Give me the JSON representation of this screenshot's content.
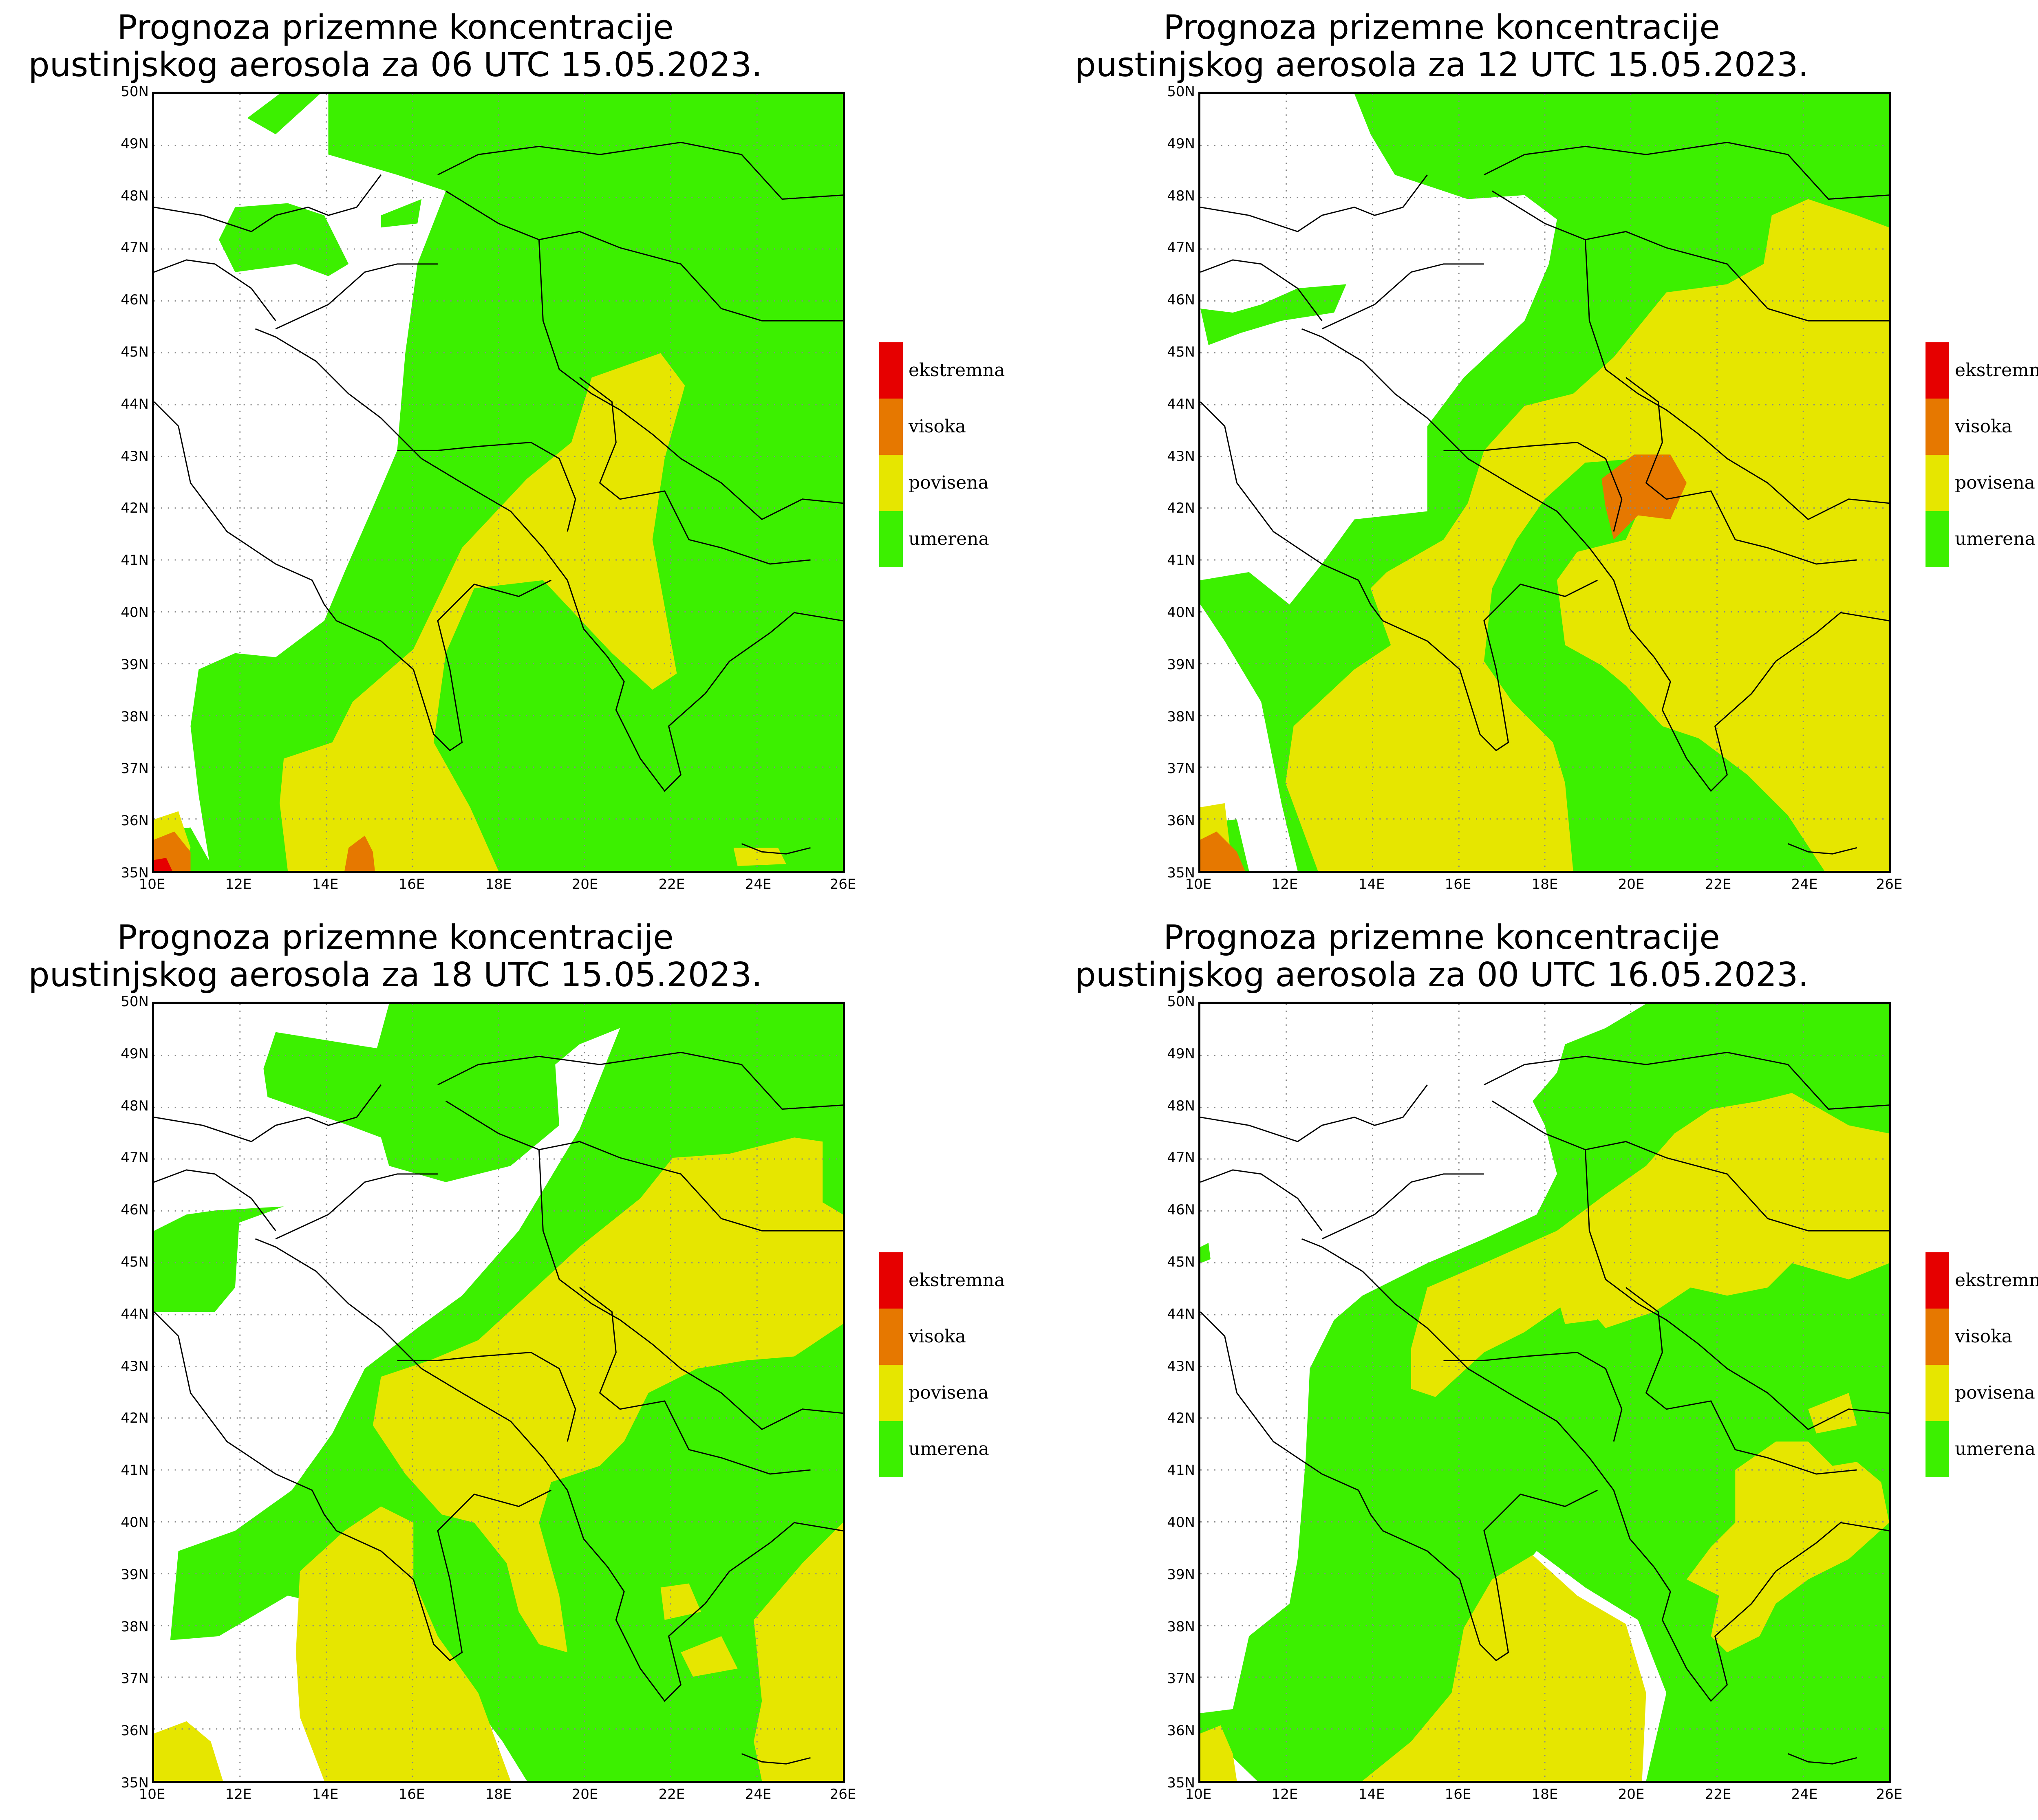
{
  "colors": {
    "ekstremna": "#e60000",
    "visoka": "#e67800",
    "povisena": "#e6e600",
    "umerena": "#3cf000",
    "background": "#ffffff"
  },
  "legend": [
    {
      "label": "ekstremna",
      "color": "#e60000"
    },
    {
      "label": "visoka",
      "color": "#e67800"
    },
    {
      "label": "povisena",
      "color": "#e6e600"
    },
    {
      "label": "umerena",
      "color": "#3cf000"
    }
  ],
  "y_labels": [
    "50N",
    "49N",
    "48N",
    "47N",
    "46N",
    "45N",
    "44N",
    "43N",
    "42N",
    "41N",
    "40N",
    "39N",
    "38N",
    "37N",
    "36N",
    "35N"
  ],
  "x_labels": [
    "10E",
    "12E",
    "14E",
    "16E",
    "18E",
    "20E",
    "22E",
    "24E",
    "26E"
  ],
  "panels": [
    {
      "title_line1": "Prognoza prizemne koncentracije",
      "title_line2": "pustinjskog aerosola za 06 UTC 15.05.2023."
    },
    {
      "title_line1": "Prognoza prizemne koncentracije",
      "title_line2": "pustinjskog aerosola za 12 UTC 15.05.2023."
    },
    {
      "title_line1": "Prognoza prizemne koncentracije",
      "title_line2": "pustinjskog aerosola za 18 UTC 15.05.2023."
    },
    {
      "title_line1": "Prognoza prizemne koncentracije",
      "title_line2": "pustinjskog aerosola za 00 UTC 16.05.2023."
    }
  ]
}
